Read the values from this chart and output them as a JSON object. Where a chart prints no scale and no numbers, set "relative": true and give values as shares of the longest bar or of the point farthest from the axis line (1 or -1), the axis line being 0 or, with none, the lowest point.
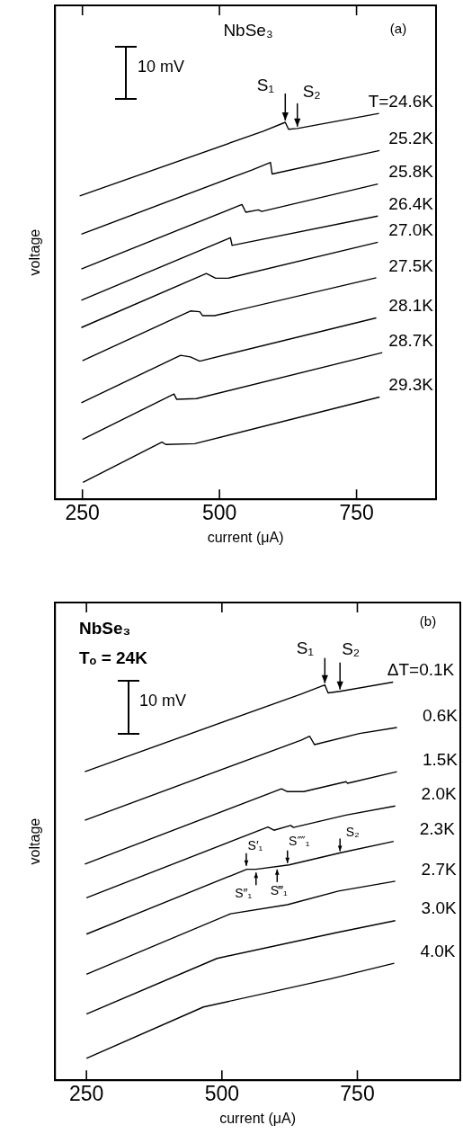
{
  "chart_data": [
    {
      "type": "line",
      "xlabel": "current (μA)",
      "ylabel": "voltage",
      "relative": true,
      "xlim": [
        200,
        895
      ],
      "xticks": [
        250,
        500,
        750
      ],
      "legend": false,
      "marker": "none",
      "line_style": "solid",
      "annotations": [
        "NbSe₃",
        "(a)",
        "10 mV",
        {
          "text": "S₁",
          "x": 620,
          "y": 0.977
        },
        {
          "text": "S₂",
          "x": 642,
          "y": 0.961
        }
      ],
      "series": [
        {
          "name": "T=24.6K",
          "color": "#000000",
          "x": [
            245,
            580,
            620,
            626,
            642,
            791
          ],
          "values": [
            0.786,
            0.954,
            0.977,
            0.959,
            0.961,
            1.0
          ]
        },
        {
          "name": "25.2K",
          "color": "#000000",
          "x": [
            248,
            560,
            593,
            596,
            792
          ],
          "values": [
            0.687,
            0.854,
            0.873,
            0.843,
            0.904
          ]
        },
        {
          "name": "25.8K",
          "color": "#000000",
          "x": [
            248,
            541,
            548,
            571,
            577,
            789
          ],
          "values": [
            0.597,
            0.764,
            0.744,
            0.75,
            0.746,
            0.817
          ]
        },
        {
          "name": "26.4K",
          "color": "#000000",
          "x": [
            248,
            520,
            523,
            789
          ],
          "values": [
            0.516,
            0.678,
            0.658,
            0.734
          ]
        },
        {
          "name": "27.0K",
          "color": "#000000",
          "x": [
            248,
            476,
            493,
            516,
            789
          ],
          "values": [
            0.445,
            0.585,
            0.573,
            0.573,
            0.666
          ]
        },
        {
          "name": "27.5K",
          "color": "#000000",
          "x": [
            250,
            447,
            464,
            469,
            491,
            786
          ],
          "values": [
            0.359,
            0.488,
            0.486,
            0.476,
            0.476,
            0.574
          ]
        },
        {
          "name": "28.1K",
          "color": "#000000",
          "x": [
            248,
            429,
            447,
            464,
            786
          ],
          "values": [
            0.25,
            0.373,
            0.369,
            0.358,
            0.47
          ]
        },
        {
          "name": "28.7K",
          "color": "#000000",
          "x": [
            250,
            417,
            422,
            458,
            797
          ],
          "values": [
            0.155,
            0.273,
            0.259,
            0.261,
            0.38
          ]
        },
        {
          "name": "29.3K",
          "color": "#000000",
          "x": [
            251,
            395,
            402,
            455,
            792
          ],
          "values": [
            0.044,
            0.148,
            0.142,
            0.144,
            0.265
          ]
        }
      ]
    },
    {
      "type": "line",
      "xlabel": "current (μA)",
      "ylabel": "voltage",
      "relative": true,
      "xlim": [
        192,
        940
      ],
      "xticks": [
        250,
        500,
        750
      ],
      "legend": false,
      "marker": "none",
      "line_style": "solid",
      "annotations": [
        "NbSe₃",
        "Tₒ = 24K",
        "(b)",
        "10 mV",
        {
          "text": "S₁",
          "x": 690,
          "y": 0.993
        },
        {
          "text": "S₂",
          "x": 718,
          "y": 0.977
        },
        {
          "text": "S′₁",
          "x": 545,
          "y": 0.534
        },
        {
          "text": "S″₁",
          "x": 563,
          "y": 0.526
        },
        {
          "text": "S‴₁",
          "x": 602,
          "y": 0.534
        },
        {
          "text": "S⁗₁",
          "x": 621,
          "y": 0.541
        },
        {
          "text": "S₂",
          "x": 718,
          "y": 0.571
        }
      ],
      "series": [
        {
          "name": "ΔT=0.1K",
          "color": "#000000",
          "x": [
            247,
            646,
            690,
            696,
            718,
            816
          ],
          "values": [
            0.775,
            0.97,
            0.993,
            0.973,
            0.977,
            1.0
          ]
        },
        {
          "name": "0.6K",
          "color": "#000000",
          "x": [
            247,
            646,
            662,
            671,
            754,
            823
          ],
          "values": [
            0.653,
            0.854,
            0.864,
            0.843,
            0.871,
            0.886
          ]
        },
        {
          "name": "1.5K",
          "color": "#000000",
          "x": [
            247,
            610,
            621,
            651,
            729,
            732,
            823
          ],
          "values": [
            0.543,
            0.732,
            0.725,
            0.725,
            0.75,
            0.746,
            0.775
          ]
        },
        {
          "name": "2.0K",
          "color": "#000000",
          "x": [
            250,
            585,
            596,
            627,
            632,
            729,
            820
          ],
          "values": [
            0.458,
            0.636,
            0.628,
            0.64,
            0.635,
            0.666,
            0.689
          ]
        },
        {
          "name": "2.3K",
          "color": "#000000",
          "x": [
            250,
            546,
            563,
            624,
            721,
            817
          ],
          "values": [
            0.367,
            0.53,
            0.53,
            0.541,
            0.572,
            0.6
          ]
        },
        {
          "name": "2.7K",
          "color": "#000000",
          "x": [
            250,
            516,
            621,
            715,
            820
          ],
          "values": [
            0.266,
            0.418,
            0.441,
            0.475,
            0.5
          ]
        },
        {
          "name": "3.0K",
          "color": "#000000",
          "x": [
            250,
            491,
            712,
            820
          ],
          "values": [
            0.166,
            0.306,
            0.371,
            0.401
          ]
        },
        {
          "name": "4.0K",
          "color": "#000000",
          "x": [
            250,
            466,
            701,
            818
          ],
          "values": [
            0.055,
            0.184,
            0.255,
            0.294
          ]
        }
      ]
    }
  ]
}
